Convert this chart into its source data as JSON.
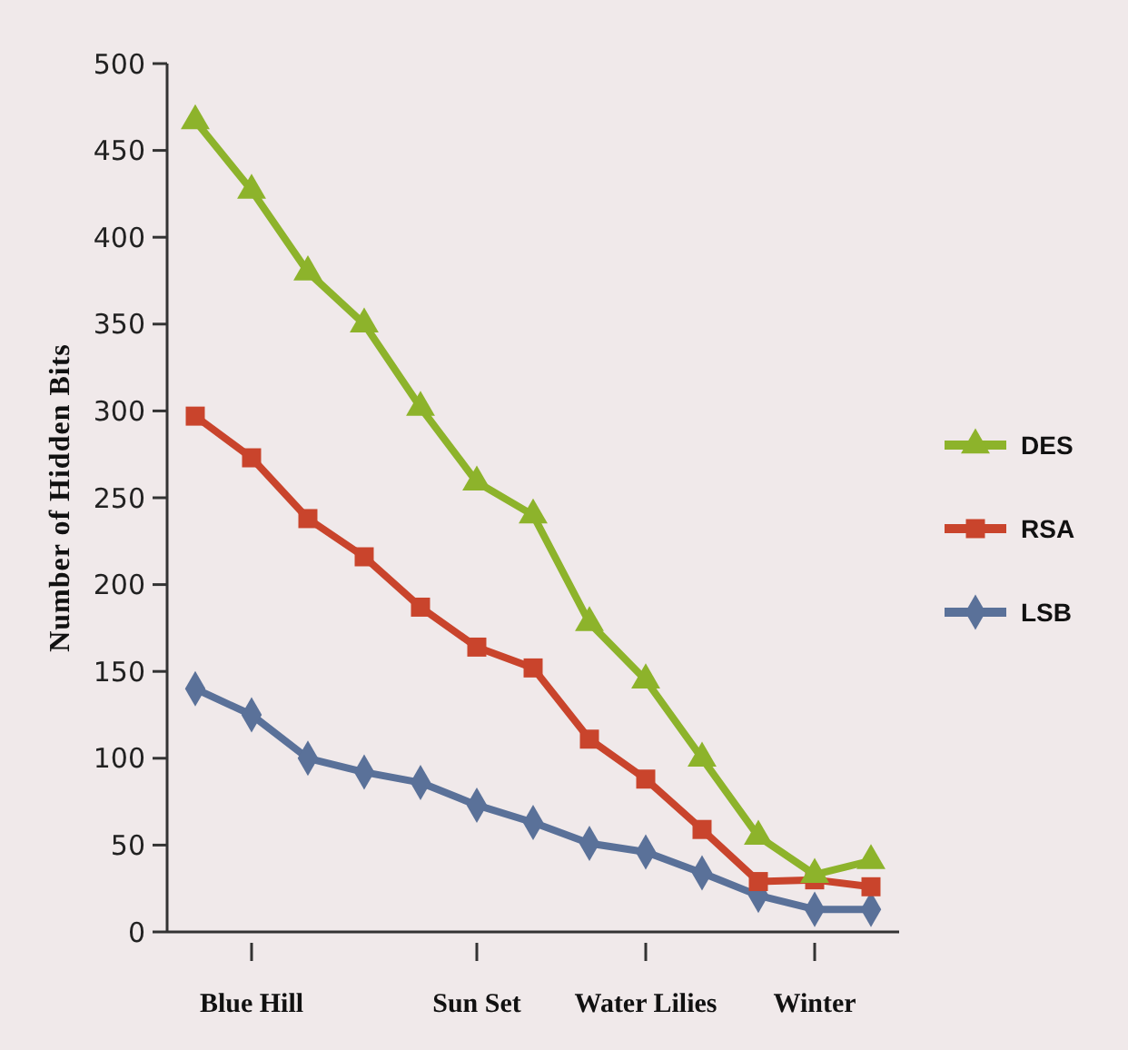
{
  "chart_data": {
    "type": "line",
    "ylabel": "Number of Hidden Bits",
    "categories": [
      null,
      "Blue Hill",
      null,
      null,
      null,
      "Sun Set",
      null,
      null,
      "Water Lilies",
      null,
      null,
      "Winter",
      null
    ],
    "ylim": [
      0,
      500
    ],
    "yticks": [
      0,
      50,
      100,
      150,
      200,
      250,
      300,
      350,
      400,
      450,
      500
    ],
    "grid": false,
    "legend": "right",
    "series": [
      {
        "name": "DES",
        "color": "#8db32b",
        "marker": "triangle",
        "values": [
          467,
          427,
          380,
          350,
          302,
          259,
          240,
          178,
          145,
          100,
          55,
          33,
          41
        ]
      },
      {
        "name": "RSA",
        "color": "#c9442c",
        "marker": "square",
        "values": [
          297,
          273,
          238,
          216,
          187,
          164,
          152,
          111,
          88,
          59,
          29,
          30,
          26
        ]
      },
      {
        "name": "LSB",
        "color": "#5a7199",
        "marker": "diamond",
        "values": [
          140,
          125,
          100,
          92,
          86,
          73,
          63,
          51,
          46,
          34,
          21,
          13,
          13
        ]
      }
    ]
  }
}
